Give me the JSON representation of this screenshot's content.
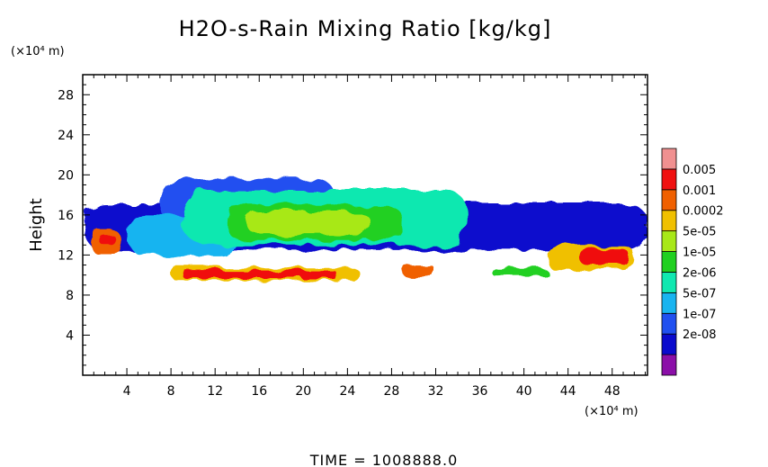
{
  "chart_data": {
    "type": "heatmap",
    "title": "H2O-s-Rain Mixing Ratio [kg/kg]",
    "ylabel": "Height",
    "xunit": "(×10⁴ m)",
    "yunit": "(×10⁴ m)",
    "xlim": [
      0,
      51.2
    ],
    "ylim": [
      0,
      30
    ],
    "xticks": [
      4,
      8,
      12,
      16,
      20,
      24,
      28,
      32,
      36,
      40,
      44,
      48
    ],
    "yticks": [
      4,
      8,
      12,
      16,
      20,
      24,
      28
    ],
    "grid": false,
    "colorbar": {
      "position": "right",
      "scale": "log",
      "levels": [
        "0.005",
        "0.001",
        "0.0002",
        "5e-05",
        "1e-05",
        "2e-06",
        "5e-07",
        "1e-07",
        "2e-08"
      ],
      "colors": [
        "#8b0fa8",
        "#0a0acd",
        "#2050f0",
        "#18b4f0",
        "#10e8b0",
        "#20d020",
        "#a8e818",
        "#f0c000",
        "#f06000",
        "#f01010",
        "#f09090"
      ]
    },
    "regions": [
      {
        "x": [
          0,
          51.2
        ],
        "y": [
          12.5,
          17.2
        ],
        "level": 1
      },
      {
        "x": [
          7,
          23
        ],
        "y": [
          15,
          19.6
        ],
        "level": 2
      },
      {
        "x": [
          4,
          14
        ],
        "y": [
          12,
          16
        ],
        "level": 3
      },
      {
        "x": [
          9,
          35
        ],
        "y": [
          13,
          18.5
        ],
        "level": 4
      },
      {
        "x": [
          13,
          29
        ],
        "y": [
          13.5,
          17
        ],
        "level": 5
      },
      {
        "x": [
          15,
          26
        ],
        "y": [
          14,
          16.3
        ],
        "level": 6
      },
      {
        "x": [
          0.5,
          3.5
        ],
        "y": [
          12.3,
          14.5
        ],
        "level": 8
      },
      {
        "x": [
          1.5,
          3
        ],
        "y": [
          13,
          14
        ],
        "level": 9
      },
      {
        "x": [
          8,
          25
        ],
        "y": [
          9.5,
          10.8
        ],
        "level": 7
      },
      {
        "x": [
          9,
          23
        ],
        "y": [
          9.7,
          10.5
        ],
        "level": 9
      },
      {
        "x": [
          29,
          32
        ],
        "y": [
          9.8,
          10.9
        ],
        "level": 8
      },
      {
        "x": [
          37,
          42
        ],
        "y": [
          10,
          10.8
        ],
        "level": 5
      },
      {
        "x": [
          42,
          50
        ],
        "y": [
          10.5,
          13
        ],
        "level": 7
      },
      {
        "x": [
          45,
          49.5
        ],
        "y": [
          11,
          12.7
        ],
        "level": 9
      }
    ],
    "time_label": "TIME = 1008888.0"
  }
}
